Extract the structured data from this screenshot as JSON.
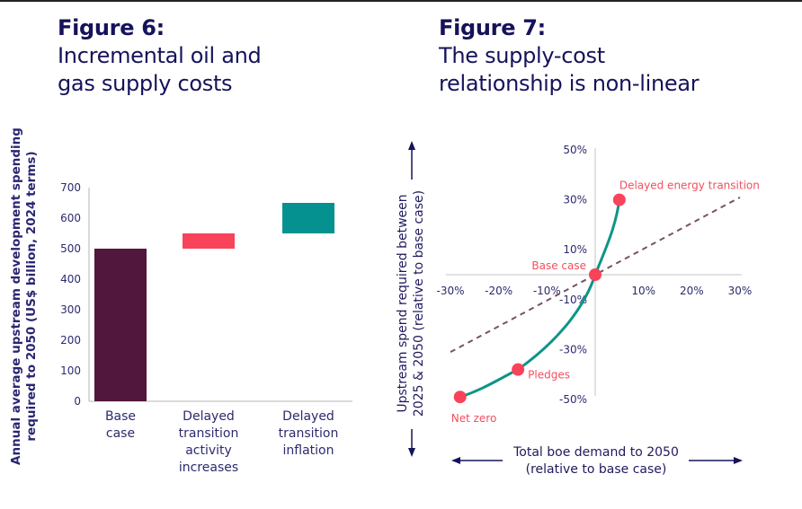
{
  "figures": {
    "fig6": {
      "number": "Figure 6:",
      "title_lines": [
        "Incremental oil and",
        "gas supply costs"
      ]
    },
    "fig7": {
      "number": "Figure 7:",
      "title_lines": [
        "The supply-cost",
        "relationship is non-linear"
      ]
    }
  },
  "chart_data": [
    {
      "type": "bar",
      "subtype": "waterfall",
      "title": "Incremental oil and gas supply costs",
      "ylabel_lines": [
        "Annual average upstream development spending",
        "required to 2050 (US$ billion, 2024 terms)"
      ],
      "xlabel": "",
      "ylim": [
        0,
        700
      ],
      "yticks": [
        0,
        100,
        200,
        300,
        400,
        500,
        600,
        700
      ],
      "grid": false,
      "categories": [
        {
          "label_lines": [
            "Base",
            "case"
          ]
        },
        {
          "label_lines": [
            "Delayed",
            "transition",
            "activity",
            "increases"
          ]
        },
        {
          "label_lines": [
            "Delayed",
            "transition",
            "inflation"
          ]
        }
      ],
      "bars": [
        {
          "name": "Base case",
          "start": 0,
          "end": 500,
          "color": "#52173c"
        },
        {
          "name": "Delayed transition activity increases",
          "start": 500,
          "end": 550,
          "color": "#f8435a"
        },
        {
          "name": "Delayed transition inflation",
          "start": 550,
          "end": 650,
          "color": "#05918f"
        }
      ]
    },
    {
      "type": "line",
      "title": "The supply-cost relationship is non-linear",
      "xlabel_lines": [
        "Total boe demand to 2050",
        "(relative to base case)"
      ],
      "ylabel_lines": [
        "Upstream spend required between",
        "2025 & 2050 (relative to base case)"
      ],
      "xlim": [
        -30,
        30
      ],
      "ylim": [
        -50,
        50
      ],
      "xticks": [
        "-30%",
        "-20%",
        "-10%",
        "10%",
        "20%",
        "30%"
      ],
      "xtick_values": [
        -30,
        -20,
        -10,
        10,
        20,
        30
      ],
      "yticks": [
        "50%",
        "30%",
        "10%",
        "-10%",
        "-30%",
        "-50%"
      ],
      "ytick_values": [
        50,
        30,
        10,
        -10,
        -30,
        -50
      ],
      "grid": false,
      "series": [
        {
          "name": "Supply-cost curve",
          "color": "#0e9488",
          "points": [
            {
              "x": -28,
              "y": -49,
              "label": "Net zero"
            },
            {
              "x": -16,
              "y": -38,
              "label": "Pledges"
            },
            {
              "x": 0,
              "y": 0,
              "label": "Base case"
            },
            {
              "x": 5,
              "y": 30,
              "label": "Delayed energy transition"
            }
          ]
        },
        {
          "name": "Linear reference",
          "style": "dashed",
          "color": "#7a5068",
          "points": [
            {
              "x": -30,
              "y": -31
            },
            {
              "x": 30,
              "y": 31
            }
          ]
        }
      ],
      "marker_color": "#f8435a"
    }
  ]
}
